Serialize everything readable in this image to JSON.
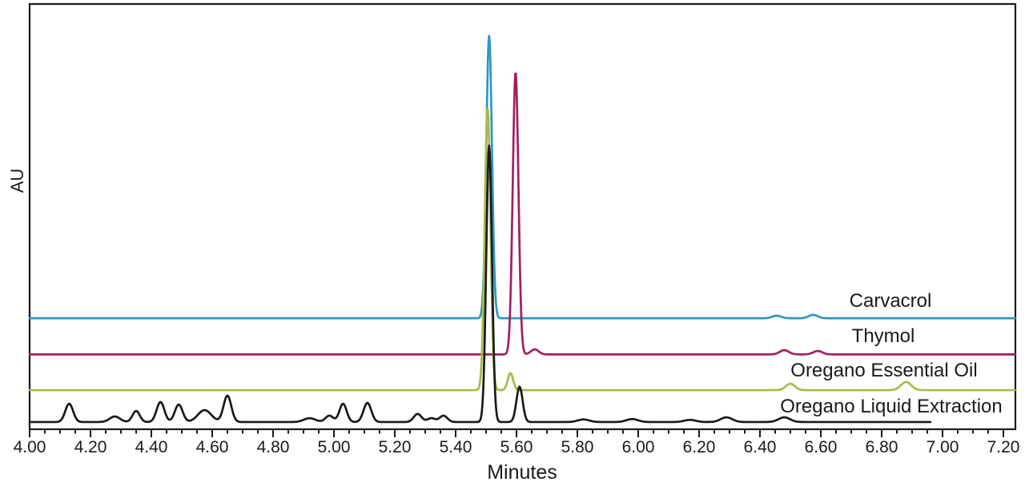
{
  "chart_data": {
    "type": "line",
    "title": "",
    "xlabel": "Minutes",
    "ylabel": "AU",
    "x_range": [
      4.0,
      7.24
    ],
    "x_ticks": [
      "4.00",
      "4.20",
      "4.40",
      "4.60",
      "4.80",
      "5.00",
      "5.20",
      "5.40",
      "5.60",
      "5.80",
      "6.00",
      "6.20",
      "6.40",
      "6.60",
      "6.80",
      "7.00",
      "7.20"
    ],
    "minor_tick_step": 0.05,
    "grid": "off",
    "legend_position": "inline-right-labels",
    "axis_color": "#1a1a1a",
    "background_color": "#ffffff",
    "y_axis_note": "no numeric ticks; stacked offset chromatograms; heights given as fraction of plot height",
    "series": [
      {
        "id": "carvacrol",
        "label": "Carvacrol",
        "color": "#2b97c4",
        "baseline": 0.261,
        "t_start": 4.0,
        "t_end": 7.239,
        "peaks": [
          {
            "t": 5.51,
            "h": 0.664,
            "w": 0.022
          },
          {
            "t": 6.455,
            "h": 0.006,
            "w": 0.035
          },
          {
            "t": 6.575,
            "h": 0.008,
            "w": 0.035
          }
        ]
      },
      {
        "id": "thymol",
        "label": "Thymol",
        "color": "#a11f62",
        "baseline": 0.176,
        "t_start": 4.0,
        "t_end": 7.239,
        "peaks": [
          {
            "t": 5.597,
            "h": 0.664,
            "w": 0.022
          },
          {
            "t": 5.66,
            "h": 0.012,
            "w": 0.03
          },
          {
            "t": 6.48,
            "h": 0.01,
            "w": 0.035
          },
          {
            "t": 6.59,
            "h": 0.008,
            "w": 0.035
          }
        ]
      },
      {
        "id": "oregano-essential-oil",
        "label": "Oregano Essential Oil",
        "color": "#a9ba45",
        "baseline": 0.092,
        "t_start": 4.0,
        "t_end": 7.239,
        "peaks": [
          {
            "t": 5.505,
            "h": 0.664,
            "w": 0.022
          },
          {
            "t": 5.58,
            "h": 0.04,
            "w": 0.021
          },
          {
            "t": 6.5,
            "h": 0.015,
            "w": 0.035
          },
          {
            "t": 6.88,
            "h": 0.019,
            "w": 0.04
          }
        ]
      },
      {
        "id": "oregano-liquid-extraction",
        "label": "Oregano Liquid Extraction",
        "color": "#1a1a1a",
        "baseline": 0.017,
        "t_start": 4.0,
        "t_end": 6.96,
        "peaks": [
          {
            "t": 4.13,
            "h": 0.043,
            "w": 0.03
          },
          {
            "t": 4.28,
            "h": 0.013,
            "w": 0.04
          },
          {
            "t": 4.35,
            "h": 0.026,
            "w": 0.028
          },
          {
            "t": 4.43,
            "h": 0.047,
            "w": 0.03
          },
          {
            "t": 4.49,
            "h": 0.041,
            "w": 0.03
          },
          {
            "t": 4.575,
            "h": 0.028,
            "w": 0.052
          },
          {
            "t": 4.65,
            "h": 0.062,
            "w": 0.03
          },
          {
            "t": 4.92,
            "h": 0.009,
            "w": 0.045
          },
          {
            "t": 4.985,
            "h": 0.015,
            "w": 0.03
          },
          {
            "t": 5.03,
            "h": 0.043,
            "w": 0.028
          },
          {
            "t": 5.11,
            "h": 0.045,
            "w": 0.03
          },
          {
            "t": 5.275,
            "h": 0.019,
            "w": 0.03
          },
          {
            "t": 5.32,
            "h": 0.009,
            "w": 0.03
          },
          {
            "t": 5.36,
            "h": 0.015,
            "w": 0.03
          },
          {
            "t": 5.51,
            "h": 0.65,
            "w": 0.022
          },
          {
            "t": 5.61,
            "h": 0.083,
            "w": 0.024
          },
          {
            "t": 5.82,
            "h": 0.006,
            "w": 0.045
          },
          {
            "t": 5.98,
            "h": 0.007,
            "w": 0.045
          },
          {
            "t": 6.17,
            "h": 0.005,
            "w": 0.045
          },
          {
            "t": 6.29,
            "h": 0.011,
            "w": 0.045
          },
          {
            "t": 6.48,
            "h": 0.011,
            "w": 0.045
          }
        ]
      }
    ]
  }
}
